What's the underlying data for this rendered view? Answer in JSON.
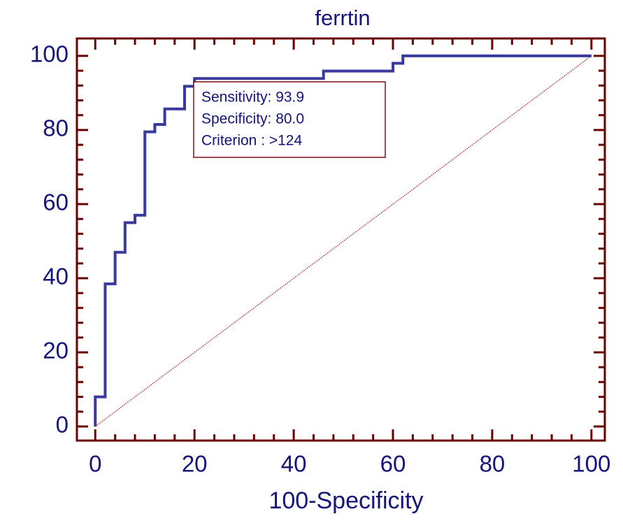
{
  "chart_data": {
    "type": "line",
    "title": "ferrtin",
    "xlabel": "100-Specificity",
    "xlim": [
      -3.7,
      102.7
    ],
    "ylim": [
      -3.8,
      104.7
    ],
    "xticks": [
      0,
      20,
      40,
      60,
      80,
      100
    ],
    "yticks": [
      0,
      20,
      40,
      60,
      80,
      100
    ],
    "xminorticks": [
      4,
      8,
      12,
      16,
      24,
      28,
      32,
      36,
      44,
      48,
      52,
      56,
      64,
      68,
      72,
      76,
      84,
      88,
      92,
      96
    ],
    "yminorticks": [
      4,
      8,
      12,
      16,
      24,
      28,
      32,
      36,
      44,
      48,
      52,
      56,
      64,
      68,
      72,
      76,
      84,
      88,
      92,
      96
    ],
    "axis_color": "#6b0000",
    "text_color": "#14147a",
    "series": [
      {
        "color": "#3a3a9e",
        "style": "solid",
        "x": [
          0,
          0,
          2,
          2,
          4,
          4,
          6,
          6,
          8,
          8,
          10,
          10,
          12,
          12,
          14,
          14,
          18,
          18,
          20,
          20,
          46,
          46,
          60,
          60,
          62,
          62,
          100
        ],
        "values": [
          0,
          8,
          8,
          38.5,
          38.5,
          47,
          47,
          55,
          55,
          57,
          57,
          79.5,
          79.5,
          81.5,
          81.5,
          85.7,
          85.7,
          91.8,
          91.8,
          93.9,
          93.9,
          95.9,
          95.9,
          98,
          98,
          100,
          100
        ]
      },
      {
        "color": "#a01010",
        "style": "dotted",
        "x": [
          0,
          100
        ],
        "values": [
          0,
          100
        ]
      }
    ],
    "annotation": [
      "Sensitivity: 93.9",
      "Specificity: 80.0",
      "Criterion : >124"
    ]
  }
}
